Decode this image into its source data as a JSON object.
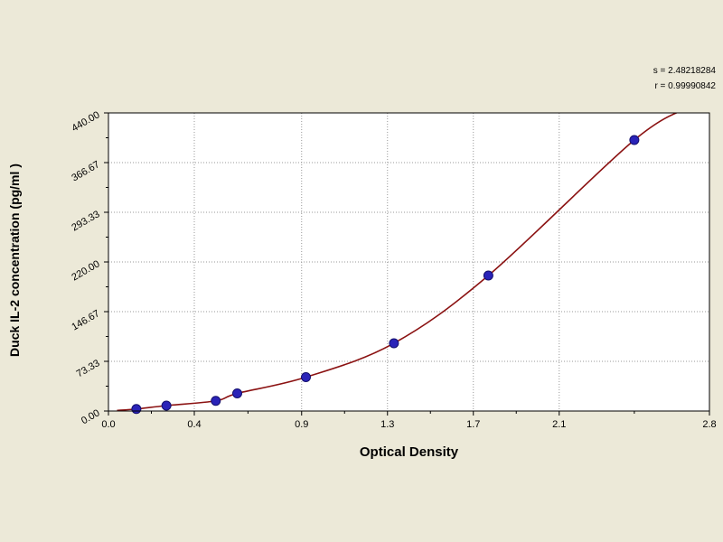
{
  "page": {
    "background": "#ece9d8"
  },
  "stats": {
    "line1": "s = 2.48218284",
    "line2": "r = 0.99990842"
  },
  "chart_data": {
    "type": "scatter",
    "title": "",
    "xlabel": "Optical Density",
    "ylabel": "Duck IL-2 concentration (pg/ml )",
    "xlim": [
      0.0,
      2.8
    ],
    "ylim": [
      0.0,
      440.0
    ],
    "x_ticks": [
      0.0,
      0.4,
      0.9,
      1.3,
      1.7,
      2.1,
      2.8
    ],
    "x_tick_labels": [
      "0.0",
      "0.4",
      "0.9",
      "1.3",
      "1.7",
      "2.1",
      "2.8"
    ],
    "y_ticks": [
      0.0,
      73.33,
      146.67,
      220.0,
      293.33,
      366.67,
      440.0
    ],
    "y_tick_labels": [
      "0.00",
      "73.33",
      "146.67",
      "220.00",
      "293.33",
      "366.67",
      "440.00"
    ],
    "grid": "dotted",
    "legend": "none",
    "series": [
      {
        "name": "standard-points",
        "type": "scatter",
        "points": [
          [
            0.13,
            3
          ],
          [
            0.27,
            8
          ],
          [
            0.5,
            15
          ],
          [
            0.6,
            26
          ],
          [
            0.92,
            50
          ],
          [
            1.33,
            100
          ],
          [
            1.77,
            200
          ],
          [
            2.45,
            400
          ]
        ]
      },
      {
        "name": "fitted-curve",
        "type": "line",
        "description": "regression fit through standard points rising to top-right corner"
      }
    ],
    "colors": {
      "point": "#2a23b8",
      "point_stroke": "#14106e",
      "curve": "#8b1212",
      "grid": "#999999",
      "plot_bg": "#ffffff",
      "axis": "#000000"
    }
  }
}
